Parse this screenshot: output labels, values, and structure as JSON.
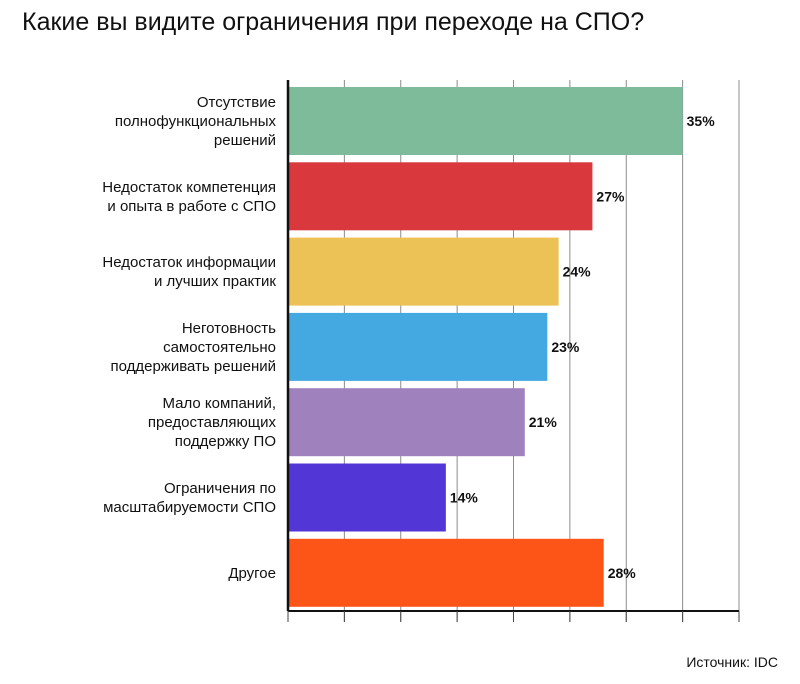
{
  "chart_data": {
    "type": "bar",
    "orientation": "horizontal",
    "title": "Какие вы видите ограничения при переходе на СПО?",
    "categories": [
      [
        "Отсутствие",
        "полнофункциональных",
        "решений"
      ],
      [
        "Недостаток компетенция",
        "и опыта в работе с СПО"
      ],
      [
        "Недостаток информации",
        "и лучших практик"
      ],
      [
        "Неготовность",
        "самостоятельно",
        "поддерживать решений"
      ],
      [
        "Мало компаний,",
        "предоставляющих",
        "поддержку ПО"
      ],
      [
        "Ограничения по",
        "масштабируемости СПО"
      ],
      [
        "Другое"
      ]
    ],
    "values": [
      35,
      27,
      24,
      23,
      21,
      14,
      28
    ],
    "value_labels": [
      "35%",
      "27%",
      "24%",
      "23%",
      "21%",
      "14%",
      "28%"
    ],
    "colors": [
      "#7dbb9b",
      "#d9383d",
      "#ecc156",
      "#45a9e1",
      "#9f82bd",
      "#5237d6",
      "#fd5418"
    ],
    "xlim": [
      0,
      40
    ],
    "grid": true,
    "source": "Источник: IDC"
  }
}
